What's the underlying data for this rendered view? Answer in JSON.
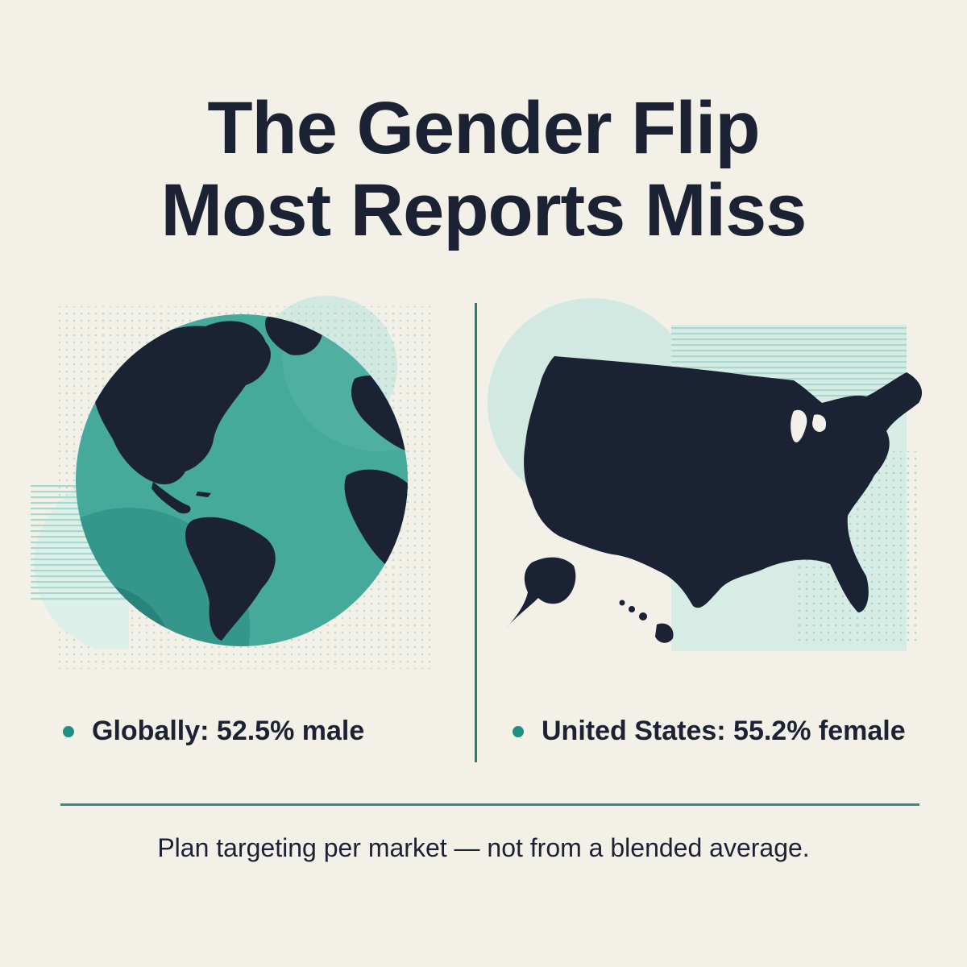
{
  "title": {
    "line1": "The Gender Flip",
    "line2": "Most Reports Miss"
  },
  "left_panel": {
    "icon": "globe-icon",
    "stat": "Globally: 52.5% male"
  },
  "right_panel": {
    "icon": "usa-map-icon",
    "stat": "United States: 55.2% female"
  },
  "footer": {
    "text": "Plan targeting per market — not from a blended average."
  },
  "colors": {
    "background": "#f3f0e8",
    "navy": "#1b2233",
    "teal": "#3aa697",
    "accent": "#1f8f83"
  }
}
